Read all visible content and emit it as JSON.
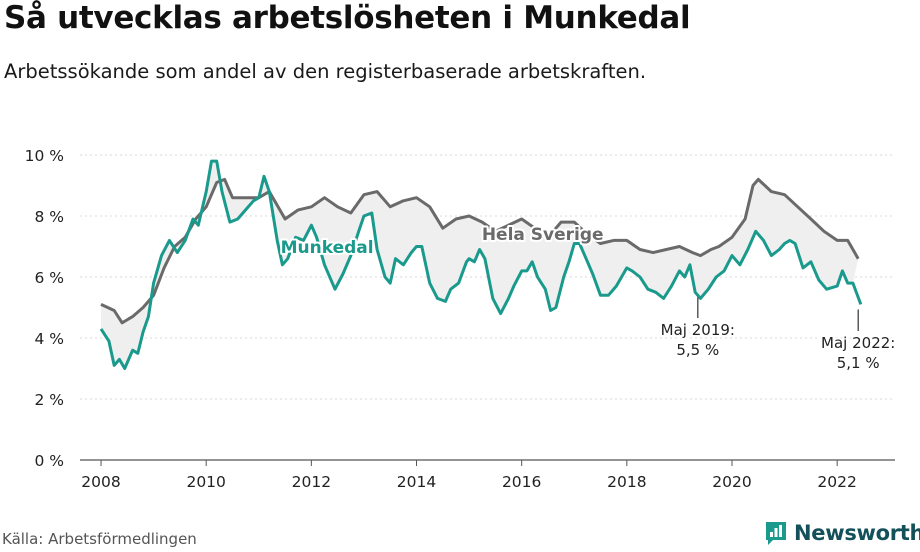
{
  "title": "Så utvecklas arbetslösheten i Munkedal",
  "subtitle": "Arbetssökande som andel av den registerbaserade arbetskraften.",
  "source": "Källa: Arbetsförmedlingen",
  "brand": "Newsworthy",
  "colors": {
    "munkedal": "#1a9a8c",
    "sverige": "#6a6a6a",
    "band": "#efefef",
    "grid": "#d9d9d9",
    "brand": "#14505a"
  },
  "chart_data": {
    "type": "line",
    "title": "Så utvecklas arbetslösheten i Munkedal",
    "ylim": [
      0,
      10
    ],
    "xlim": [
      2007.6,
      2023.1
    ],
    "y_ticks": [
      0,
      2,
      4,
      6,
      8,
      10
    ],
    "y_tick_labels": [
      "0 %",
      "2 %",
      "4 %",
      "6 %",
      "8 %",
      "10 %"
    ],
    "x_ticks": [
      2008,
      2010,
      2012,
      2014,
      2016,
      2018,
      2020,
      2022
    ],
    "x_tick_labels": [
      "2008",
      "2010",
      "2012",
      "2014",
      "2016",
      "2018",
      "2020",
      "2022"
    ],
    "grid": true,
    "series": [
      {
        "name": "Hela Sverige",
        "points": [
          [
            2008.0,
            5.1
          ],
          [
            2008.25,
            4.9
          ],
          [
            2008.4,
            4.5
          ],
          [
            2008.6,
            4.7
          ],
          [
            2008.8,
            5.0
          ],
          [
            2009.0,
            5.4
          ],
          [
            2009.2,
            6.3
          ],
          [
            2009.4,
            7.0
          ],
          [
            2009.6,
            7.3
          ],
          [
            2009.8,
            7.9
          ],
          [
            2010.0,
            8.3
          ],
          [
            2010.2,
            9.1
          ],
          [
            2010.35,
            9.2
          ],
          [
            2010.5,
            8.6
          ],
          [
            2010.75,
            8.6
          ],
          [
            2011.0,
            8.6
          ],
          [
            2011.2,
            8.8
          ],
          [
            2011.5,
            7.9
          ],
          [
            2011.75,
            8.2
          ],
          [
            2012.0,
            8.3
          ],
          [
            2012.25,
            8.6
          ],
          [
            2012.5,
            8.3
          ],
          [
            2012.75,
            8.1
          ],
          [
            2013.0,
            8.7
          ],
          [
            2013.25,
            8.8
          ],
          [
            2013.5,
            8.3
          ],
          [
            2013.75,
            8.5
          ],
          [
            2014.0,
            8.6
          ],
          [
            2014.25,
            8.3
          ],
          [
            2014.5,
            7.6
          ],
          [
            2014.75,
            7.9
          ],
          [
            2015.0,
            8.0
          ],
          [
            2015.25,
            7.8
          ],
          [
            2015.5,
            7.5
          ],
          [
            2015.75,
            7.7
          ],
          [
            2016.0,
            7.9
          ],
          [
            2016.25,
            7.6
          ],
          [
            2016.5,
            7.3
          ],
          [
            2016.75,
            7.8
          ],
          [
            2017.0,
            7.8
          ],
          [
            2017.25,
            7.4
          ],
          [
            2017.5,
            7.1
          ],
          [
            2017.75,
            7.2
          ],
          [
            2018.0,
            7.2
          ],
          [
            2018.25,
            6.9
          ],
          [
            2018.5,
            6.8
          ],
          [
            2018.75,
            6.9
          ],
          [
            2019.0,
            7.0
          ],
          [
            2019.25,
            6.8
          ],
          [
            2019.4,
            6.7
          ],
          [
            2019.6,
            6.9
          ],
          [
            2019.75,
            7.0
          ],
          [
            2020.0,
            7.3
          ],
          [
            2020.25,
            7.9
          ],
          [
            2020.4,
            9.0
          ],
          [
            2020.5,
            9.2
          ],
          [
            2020.75,
            8.8
          ],
          [
            2021.0,
            8.7
          ],
          [
            2021.25,
            8.3
          ],
          [
            2021.5,
            7.9
          ],
          [
            2021.75,
            7.5
          ],
          [
            2022.0,
            7.2
          ],
          [
            2022.2,
            7.2
          ],
          [
            2022.4,
            6.6
          ]
        ]
      },
      {
        "name": "Munkedal",
        "points": [
          [
            2008.0,
            4.3
          ],
          [
            2008.15,
            3.9
          ],
          [
            2008.25,
            3.1
          ],
          [
            2008.35,
            3.3
          ],
          [
            2008.45,
            3.0
          ],
          [
            2008.6,
            3.6
          ],
          [
            2008.7,
            3.5
          ],
          [
            2008.8,
            4.2
          ],
          [
            2008.9,
            4.7
          ],
          [
            2009.0,
            5.8
          ],
          [
            2009.15,
            6.7
          ],
          [
            2009.3,
            7.2
          ],
          [
            2009.45,
            6.8
          ],
          [
            2009.6,
            7.2
          ],
          [
            2009.75,
            7.9
          ],
          [
            2009.85,
            7.7
          ],
          [
            2010.0,
            8.8
          ],
          [
            2010.1,
            9.8
          ],
          [
            2010.2,
            9.8
          ],
          [
            2010.3,
            8.8
          ],
          [
            2010.45,
            7.8
          ],
          [
            2010.6,
            7.9
          ],
          [
            2010.75,
            8.2
          ],
          [
            2010.9,
            8.5
          ],
          [
            2011.0,
            8.6
          ],
          [
            2011.1,
            9.3
          ],
          [
            2011.2,
            8.8
          ],
          [
            2011.35,
            7.2
          ],
          [
            2011.45,
            6.4
          ],
          [
            2011.55,
            6.6
          ],
          [
            2011.7,
            7.3
          ],
          [
            2011.85,
            7.2
          ],
          [
            2012.0,
            7.7
          ],
          [
            2012.1,
            7.3
          ],
          [
            2012.25,
            6.4
          ],
          [
            2012.45,
            5.6
          ],
          [
            2012.6,
            6.1
          ],
          [
            2012.75,
            6.7
          ],
          [
            2012.9,
            7.5
          ],
          [
            2013.0,
            8.0
          ],
          [
            2013.15,
            8.1
          ],
          [
            2013.25,
            6.9
          ],
          [
            2013.4,
            6.0
          ],
          [
            2013.5,
            5.8
          ],
          [
            2013.6,
            6.6
          ],
          [
            2013.75,
            6.4
          ],
          [
            2013.9,
            6.8
          ],
          [
            2014.0,
            7.0
          ],
          [
            2014.1,
            7.0
          ],
          [
            2014.25,
            5.8
          ],
          [
            2014.4,
            5.3
          ],
          [
            2014.55,
            5.2
          ],
          [
            2014.65,
            5.6
          ],
          [
            2014.8,
            5.8
          ],
          [
            2014.95,
            6.5
          ],
          [
            2015.0,
            6.6
          ],
          [
            2015.1,
            6.5
          ],
          [
            2015.2,
            6.9
          ],
          [
            2015.3,
            6.6
          ],
          [
            2015.45,
            5.3
          ],
          [
            2015.6,
            4.8
          ],
          [
            2015.75,
            5.3
          ],
          [
            2015.85,
            5.7
          ],
          [
            2016.0,
            6.2
          ],
          [
            2016.1,
            6.2
          ],
          [
            2016.2,
            6.5
          ],
          [
            2016.3,
            6.0
          ],
          [
            2016.45,
            5.6
          ],
          [
            2016.55,
            4.9
          ],
          [
            2016.65,
            5.0
          ],
          [
            2016.8,
            6.0
          ],
          [
            2016.9,
            6.5
          ],
          [
            2017.0,
            7.1
          ],
          [
            2017.1,
            7.1
          ],
          [
            2017.2,
            6.7
          ],
          [
            2017.35,
            6.1
          ],
          [
            2017.5,
            5.4
          ],
          [
            2017.65,
            5.4
          ],
          [
            2017.8,
            5.7
          ],
          [
            2018.0,
            6.3
          ],
          [
            2018.1,
            6.2
          ],
          [
            2018.25,
            6.0
          ],
          [
            2018.4,
            5.6
          ],
          [
            2018.55,
            5.5
          ],
          [
            2018.7,
            5.3
          ],
          [
            2018.85,
            5.7
          ],
          [
            2019.0,
            6.2
          ],
          [
            2019.1,
            6.0
          ],
          [
            2019.2,
            6.4
          ],
          [
            2019.3,
            5.5
          ],
          [
            2019.4,
            5.3
          ],
          [
            2019.55,
            5.6
          ],
          [
            2019.7,
            6.0
          ],
          [
            2019.85,
            6.2
          ],
          [
            2020.0,
            6.7
          ],
          [
            2020.15,
            6.4
          ],
          [
            2020.3,
            6.9
          ],
          [
            2020.45,
            7.5
          ],
          [
            2020.6,
            7.2
          ],
          [
            2020.75,
            6.7
          ],
          [
            2020.9,
            6.9
          ],
          [
            2021.0,
            7.1
          ],
          [
            2021.1,
            7.2
          ],
          [
            2021.2,
            7.1
          ],
          [
            2021.35,
            6.3
          ],
          [
            2021.5,
            6.5
          ],
          [
            2021.65,
            5.9
          ],
          [
            2021.8,
            5.6
          ],
          [
            2022.0,
            5.7
          ],
          [
            2022.1,
            6.2
          ],
          [
            2022.2,
            5.8
          ],
          [
            2022.3,
            5.8
          ],
          [
            2022.45,
            5.1
          ]
        ]
      }
    ],
    "annotations": [
      {
        "text_lines": [
          "Maj 2019:",
          "5,5 %"
        ],
        "x": 2019.35,
        "y": 5.5
      },
      {
        "text_lines": [
          "Maj 2022:",
          "5,1 %"
        ],
        "x": 2022.4,
        "y": 5.1
      }
    ]
  }
}
